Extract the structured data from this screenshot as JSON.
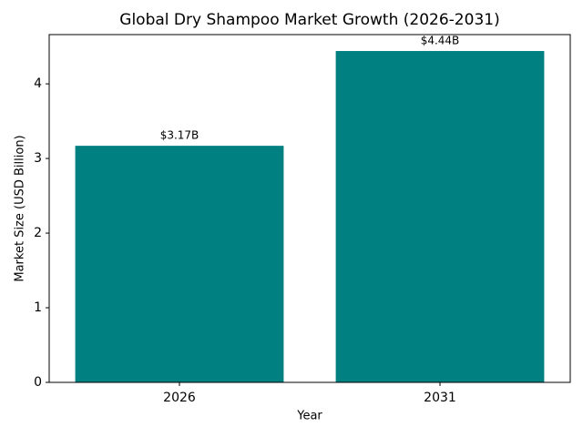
{
  "chart_data": {
    "type": "bar",
    "title": "Global Dry Shampoo Market Growth (2026-2031)",
    "x_label": "Year",
    "y_label": "Market Size (USD Billion)",
    "categories": [
      "2026",
      "2031"
    ],
    "values": [
      3.17,
      4.44
    ],
    "value_labels": [
      "$3.17B",
      "$4.44B"
    ],
    "color": "#008080",
    "ylim": [
      0,
      4.66
    ],
    "yticks": [
      0,
      1,
      2,
      3,
      4
    ],
    "grid": false
  }
}
